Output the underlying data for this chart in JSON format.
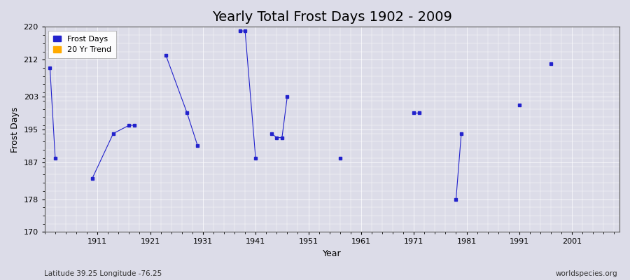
{
  "title": "Yearly Total Frost Days 1902 - 2009",
  "xlabel": "Year",
  "ylabel": "Frost Days",
  "xlim": [
    1901,
    2010
  ],
  "ylim": [
    170,
    220
  ],
  "yticks": [
    170,
    178,
    187,
    195,
    203,
    212,
    220
  ],
  "xticks": [
    1911,
    1921,
    1931,
    1941,
    1951,
    1961,
    1971,
    1981,
    1991,
    2001
  ],
  "background_color": "#dcdce8",
  "plot_bg_color": "#dcdce8",
  "grid_color": "#ffffff",
  "frost_color": "#2222cc",
  "trend_color": "#ffaa00",
  "segments": [
    [
      [
        1902,
        210
      ],
      [
        1903,
        188
      ]
    ],
    [
      [
        1910,
        183
      ],
      [
        1914,
        194
      ],
      [
        1917,
        196
      ],
      [
        1918,
        196
      ]
    ],
    [
      [
        1924,
        213
      ],
      [
        1928,
        199
      ],
      [
        1930,
        191
      ]
    ],
    [
      [
        1938,
        219
      ],
      [
        1939,
        219
      ],
      [
        1941,
        188
      ]
    ],
    [
      [
        1944,
        194
      ],
      [
        1945,
        193
      ],
      [
        1946,
        193
      ],
      [
        1947,
        203
      ]
    ],
    [
      [
        1957,
        188
      ]
    ],
    [
      [
        1971,
        199
      ],
      [
        1972,
        199
      ]
    ],
    [
      [
        1979,
        178
      ],
      [
        1980,
        194
      ]
    ],
    [
      [
        1991,
        201
      ]
    ],
    [
      [
        1997,
        211
      ]
    ]
  ],
  "scatter_points": [
    [
      1902,
      210
    ],
    [
      1903,
      188
    ],
    [
      1910,
      183
    ],
    [
      1914,
      194
    ],
    [
      1917,
      196
    ],
    [
      1918,
      196
    ],
    [
      1924,
      213
    ],
    [
      1928,
      199
    ],
    [
      1930,
      191
    ],
    [
      1938,
      219
    ],
    [
      1939,
      219
    ],
    [
      1941,
      188
    ],
    [
      1944,
      194
    ],
    [
      1945,
      193
    ],
    [
      1946,
      193
    ],
    [
      1947,
      203
    ],
    [
      1957,
      188
    ],
    [
      1971,
      199
    ],
    [
      1972,
      199
    ],
    [
      1979,
      178
    ],
    [
      1980,
      194
    ],
    [
      1991,
      201
    ],
    [
      1997,
      211
    ]
  ],
  "footnote_left": "Latitude 39.25 Longitude -76.25",
  "footnote_right": "worldspecies.org",
  "title_fontsize": 14,
  "axis_fontsize": 9,
  "tick_fontsize": 8,
  "footnote_fontsize": 7.5
}
